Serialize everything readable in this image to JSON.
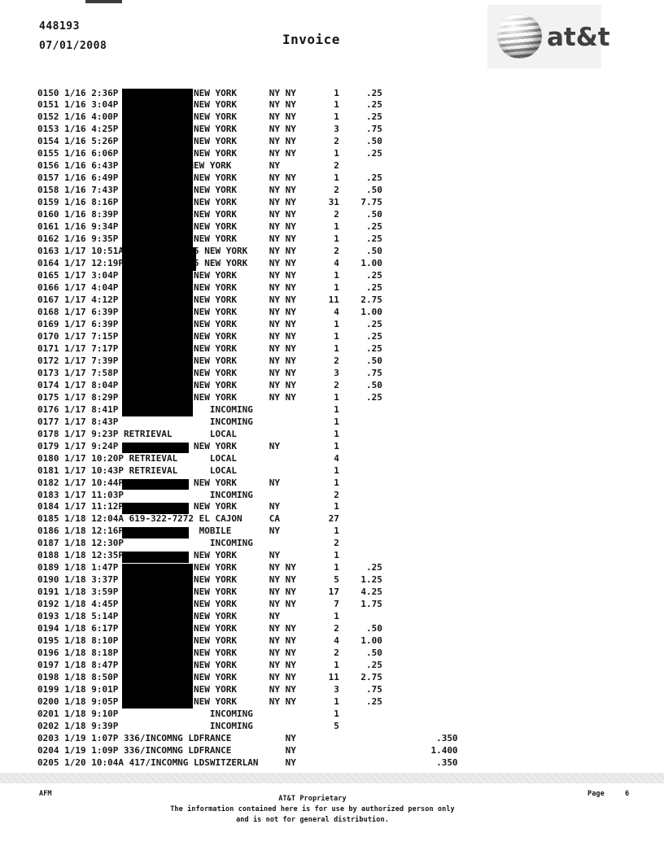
{
  "header": {
    "account_number": "448193",
    "statement_date": "07/01/2008",
    "title": "Invoice",
    "logo": {
      "brand": "at&t",
      "icon": "att-globe-icon"
    }
  },
  "call_log": {
    "rows": [
      {
        "no": "0150",
        "date": "1/16",
        "time": "2:36P",
        "number_redacted": true,
        "place": "NEW YORK",
        "state": "NY NY",
        "mins": "1",
        "amount": ".25"
      },
      {
        "no": "0151",
        "date": "1/16",
        "time": "3:04P",
        "number_redacted": true,
        "place": "NEW YORK",
        "state": "NY NY",
        "mins": "1",
        "amount": ".25"
      },
      {
        "no": "0152",
        "date": "1/16",
        "time": "4:00P",
        "number_redacted": true,
        "place": "NEW YORK",
        "state": "NY NY",
        "mins": "1",
        "amount": ".25"
      },
      {
        "no": "0153",
        "date": "1/16",
        "time": "4:25P",
        "number_redacted": true,
        "place": "NEW YORK",
        "state": "NY NY",
        "mins": "3",
        "amount": ".75"
      },
      {
        "no": "0154",
        "date": "1/16",
        "time": "5:26P",
        "number_redacted": true,
        "place": "NEW YORK",
        "state": "NY NY",
        "mins": "2",
        "amount": ".50"
      },
      {
        "no": "0155",
        "date": "1/16",
        "time": "6:06P",
        "number_redacted": true,
        "place": "NEW YORK",
        "state": "NY NY",
        "mins": "1",
        "amount": ".25"
      },
      {
        "no": "0156",
        "date": "1/16",
        "time": "6:43P",
        "number_redacted": true,
        "place": "NEW YORK",
        "place_col": 28,
        "state": "NY",
        "mins": "2",
        "amount": ""
      },
      {
        "no": "0157",
        "date": "1/16",
        "time": "6:49P",
        "number_redacted": true,
        "place": "NEW YORK",
        "state": "NY NY",
        "mins": "1",
        "amount": ".25"
      },
      {
        "no": "0158",
        "date": "1/16",
        "time": "7:43P",
        "number_redacted": true,
        "place": "NEW YORK",
        "state": "NY NY",
        "mins": "2",
        "amount": ".50"
      },
      {
        "no": "0159",
        "date": "1/16",
        "time": "8:16P",
        "number_redacted": true,
        "place": "NEW YORK",
        "state": "NY NY",
        "mins": "31",
        "amount": "7.75"
      },
      {
        "no": "0160",
        "date": "1/16",
        "time": "8:39P",
        "number_redacted": true,
        "place": "NEW YORK",
        "state": "NY NY",
        "mins": "2",
        "amount": ".50"
      },
      {
        "no": "0161",
        "date": "1/16",
        "time": "9:34P",
        "number_redacted": true,
        "place": "NEW YORK",
        "state": "NY NY",
        "mins": "1",
        "amount": ".25"
      },
      {
        "no": "0162",
        "date": "1/16",
        "time": "9:35P",
        "number_redacted": true,
        "place": "NEW YORK",
        "state": "NY NY",
        "mins": "1",
        "amount": ".25"
      },
      {
        "no": "0163",
        "date": "1/17",
        "time": "10:51A",
        "number_redacted": true,
        "place": "5 NEW YORK",
        "place_col": 29,
        "state": "NY NY",
        "mins": "2",
        "amount": ".50"
      },
      {
        "no": "0164",
        "date": "1/17",
        "time": "12:19P",
        "number_redacted": true,
        "place": "5 NEW YORK",
        "place_col": 29,
        "state": "NY NY",
        "mins": "4",
        "amount": "1.00"
      },
      {
        "no": "0165",
        "date": "1/17",
        "time": "3:04P",
        "number_redacted": true,
        "place": "NEW YORK",
        "state": "NY NY",
        "mins": "1",
        "amount": ".25"
      },
      {
        "no": "0166",
        "date": "1/17",
        "time": "4:04P",
        "number_redacted": true,
        "place": "NEW YORK",
        "state": "NY NY",
        "mins": "1",
        "amount": ".25"
      },
      {
        "no": "0167",
        "date": "1/17",
        "time": "4:12P",
        "number_redacted": true,
        "place": "NEW YORK",
        "state": "NY NY",
        "mins": "11",
        "amount": "2.75"
      },
      {
        "no": "0168",
        "date": "1/17",
        "time": "6:39P",
        "number_redacted": true,
        "place": "NEW YORK",
        "state": "NY NY",
        "mins": "4",
        "amount": "1.00"
      },
      {
        "no": "0169",
        "date": "1/17",
        "time": "6:39P",
        "number_redacted": true,
        "place": "NEW YORK",
        "state": "NY NY",
        "mins": "1",
        "amount": ".25"
      },
      {
        "no": "0170",
        "date": "1/17",
        "time": "7:15P",
        "number_redacted": true,
        "place": "NEW YORK",
        "state": "NY NY",
        "mins": "1",
        "amount": ".25"
      },
      {
        "no": "0171",
        "date": "1/17",
        "time": "7:17P",
        "number_redacted": true,
        "place": "NEW YORK",
        "state": "NY NY",
        "mins": "1",
        "amount": ".25"
      },
      {
        "no": "0172",
        "date": "1/17",
        "time": "7:39P",
        "number_redacted": true,
        "place": "NEW YORK",
        "state": "NY NY",
        "mins": "2",
        "amount": ".50"
      },
      {
        "no": "0173",
        "date": "1/17",
        "time": "7:58P",
        "number_redacted": true,
        "place": "NEW YORK",
        "state": "NY NY",
        "mins": "3",
        "amount": ".75"
      },
      {
        "no": "0174",
        "date": "1/17",
        "time": "8:04P",
        "number_redacted": true,
        "place": "NEW YORK",
        "state": "NY NY",
        "mins": "2",
        "amount": ".50"
      },
      {
        "no": "0175",
        "date": "1/17",
        "time": "8:29P",
        "number_redacted": true,
        "place": "NEW YORK",
        "state": "NY NY",
        "mins": "1",
        "amount": ".25"
      },
      {
        "no": "0176",
        "date": "1/17",
        "time": "8:41P",
        "number_redacted": true,
        "place": "INCOMING",
        "place_col": 32,
        "state": "",
        "mins": "1",
        "amount": ""
      },
      {
        "no": "0177",
        "date": "1/17",
        "time": "8:43P",
        "number_redacted": false,
        "place": "INCOMING",
        "place_col": 32,
        "state": "",
        "mins": "1",
        "amount": ""
      },
      {
        "no": "0178",
        "date": "1/17",
        "time": "9:23P",
        "number": "RETRIEVAL",
        "place": "LOCAL",
        "place_col": 32,
        "state": "",
        "mins": "1",
        "amount": ""
      },
      {
        "no": "0179",
        "date": "1/17",
        "time": "9:24P",
        "number_redacted": true,
        "place": "NEW YORK",
        "state": "NY",
        "mins": "1",
        "amount": ""
      },
      {
        "no": "0180",
        "date": "1/17",
        "time": "10:20P",
        "number": "RETRIEVAL",
        "place": "LOCAL",
        "place_col": 32,
        "state": "",
        "mins": "4",
        "amount": ""
      },
      {
        "no": "0181",
        "date": "1/17",
        "time": "10:43P",
        "number": "RETRIEVAL",
        "place": "LOCAL",
        "place_col": 32,
        "state": "",
        "mins": "1",
        "amount": ""
      },
      {
        "no": "0182",
        "date": "1/17",
        "time": "10:44P",
        "number_redacted": true,
        "place": "NEW YORK",
        "state": "NY",
        "mins": "1",
        "amount": ""
      },
      {
        "no": "0183",
        "date": "1/17",
        "time": "11:03P",
        "number_redacted": false,
        "place": "INCOMING",
        "place_col": 32,
        "state": "",
        "mins": "2",
        "amount": ""
      },
      {
        "no": "0184",
        "date": "1/17",
        "time": "11:12P",
        "number_redacted": true,
        "place": "NEW YORK",
        "state": "NY",
        "mins": "1",
        "amount": ""
      },
      {
        "no": "0185",
        "date": "1/18",
        "time": "12:04A",
        "number": "619-322-7272",
        "place": "EL CAJON",
        "place_col": 30,
        "state": "CA",
        "mins": "27",
        "amount": ""
      },
      {
        "no": "0186",
        "date": "1/18",
        "time": "12:16P",
        "number_redacted": true,
        "place": "MOBILE",
        "place_col": 30,
        "state": "NY",
        "mins": "1",
        "amount": ""
      },
      {
        "no": "0187",
        "date": "1/18",
        "time": "12:30P",
        "number_redacted": false,
        "place": "INCOMING",
        "place_col": 32,
        "state": "",
        "mins": "2",
        "amount": ""
      },
      {
        "no": "0188",
        "date": "1/18",
        "time": "12:35P",
        "number_redacted": true,
        "place": "NEW YORK",
        "state": "NY",
        "mins": "1",
        "amount": ""
      },
      {
        "no": "0189",
        "date": "1/18",
        "time": "1:47P",
        "number_redacted": true,
        "place": "NEW YORK",
        "state": "NY NY",
        "mins": "1",
        "amount": ".25"
      },
      {
        "no": "0190",
        "date": "1/18",
        "time": "3:37P",
        "number_redacted": true,
        "place": "NEW YORK",
        "state": "NY NY",
        "mins": "5",
        "amount": "1.25"
      },
      {
        "no": "0191",
        "date": "1/18",
        "time": "3:59P",
        "number_redacted": true,
        "place": "NEW YORK",
        "state": "NY NY",
        "mins": "17",
        "amount": "4.25"
      },
      {
        "no": "0192",
        "date": "1/18",
        "time": "4:45P",
        "number_redacted": true,
        "place": "NEW YORK",
        "state": "NY NY",
        "mins": "7",
        "amount": "1.75"
      },
      {
        "no": "0193",
        "date": "1/18",
        "time": "5:14P",
        "number_redacted": true,
        "place": "NEW YORK",
        "state": "NY",
        "mins": "1",
        "amount": ""
      },
      {
        "no": "0194",
        "date": "1/18",
        "time": "6:17P",
        "number_redacted": true,
        "place": "NEW YORK",
        "state": "NY NY",
        "mins": "2",
        "amount": ".50"
      },
      {
        "no": "0195",
        "date": "1/18",
        "time": "8:10P",
        "number_redacted": true,
        "place": "NEW YORK",
        "state": "NY NY",
        "mins": "4",
        "amount": "1.00"
      },
      {
        "no": "0196",
        "date": "1/18",
        "time": "8:18P",
        "number_redacted": true,
        "place": "NEW YORK",
        "state": "NY NY",
        "mins": "2",
        "amount": ".50"
      },
      {
        "no": "0197",
        "date": "1/18",
        "time": "8:47P",
        "number_redacted": true,
        "place": "NEW YORK",
        "state": "NY NY",
        "mins": "1",
        "amount": ".25"
      },
      {
        "no": "0198",
        "date": "1/18",
        "time": "8:50P",
        "number_redacted": true,
        "place": "NEW YORK",
        "state": "NY NY",
        "mins": "11",
        "amount": "2.75"
      },
      {
        "no": "0199",
        "date": "1/18",
        "time": "9:01P",
        "number_redacted": true,
        "place": "NEW YORK",
        "state": "NY NY",
        "mins": "3",
        "amount": ".75"
      },
      {
        "no": "0200",
        "date": "1/18",
        "time": "9:05P",
        "number_redacted": true,
        "place": "NEW YORK",
        "state": "NY NY",
        "mins": "1",
        "amount": ".25"
      },
      {
        "no": "0201",
        "date": "1/18",
        "time": "9:10P",
        "number_redacted": false,
        "place": "INCOMING",
        "place_col": 32,
        "state": "",
        "mins": "1",
        "amount": ""
      },
      {
        "no": "0202",
        "date": "1/18",
        "time": "9:39P",
        "number_redacted": false,
        "place": "INCOMING",
        "place_col": 32,
        "state": "",
        "mins": "5",
        "amount": ""
      },
      {
        "no": "0203",
        "date": "1/19",
        "time": "1:07P",
        "number": "336/INCOMNG",
        "place": "LDFRANCE",
        "place_col": 28,
        "state": "NY",
        "state_col": 46,
        "mins": "",
        "amount": "",
        "amount2": ".350"
      },
      {
        "no": "0204",
        "date": "1/19",
        "time": "1:09P",
        "number": "336/INCOMNG",
        "place": "LDFRANCE",
        "place_col": 28,
        "state": "NY",
        "state_col": 46,
        "mins": "",
        "amount": "",
        "amount2": "1.400"
      },
      {
        "no": "0205",
        "date": "1/20",
        "time": "10:04A",
        "number": "417/INCOMNG",
        "place": "LDSWITZERLAN",
        "place_col": 29,
        "state": "NY",
        "state_col": 46,
        "mins": "",
        "amount": "",
        "amount2": ".350"
      }
    ]
  },
  "redactions": [
    {
      "type": "block",
      "first_row": "0150",
      "last_row": "0176"
    },
    {
      "type": "block-extension",
      "first_row": "0163",
      "last_row": "0164"
    },
    {
      "type": "single",
      "row": "0179"
    },
    {
      "type": "single",
      "row": "0182"
    },
    {
      "type": "single",
      "row": "0184"
    },
    {
      "type": "single",
      "row": "0186"
    },
    {
      "type": "single",
      "row": "0188"
    },
    {
      "type": "block",
      "first_row": "0189",
      "last_row": "0200"
    }
  ],
  "footer": {
    "form_code": "AFM",
    "proprietary_line1": "AT&T Proprietary",
    "proprietary_line2": "The information contained here is for use by authorized person only",
    "proprietary_line3": "and is not for general distribution.",
    "page_label": "Page",
    "page_number": "6"
  },
  "colors": {
    "text": "#151515",
    "redaction": "#000000",
    "logo_box_bg": "#f2f2f2",
    "separator_band": "#ececec",
    "logo_text": "#3f3f3f"
  }
}
